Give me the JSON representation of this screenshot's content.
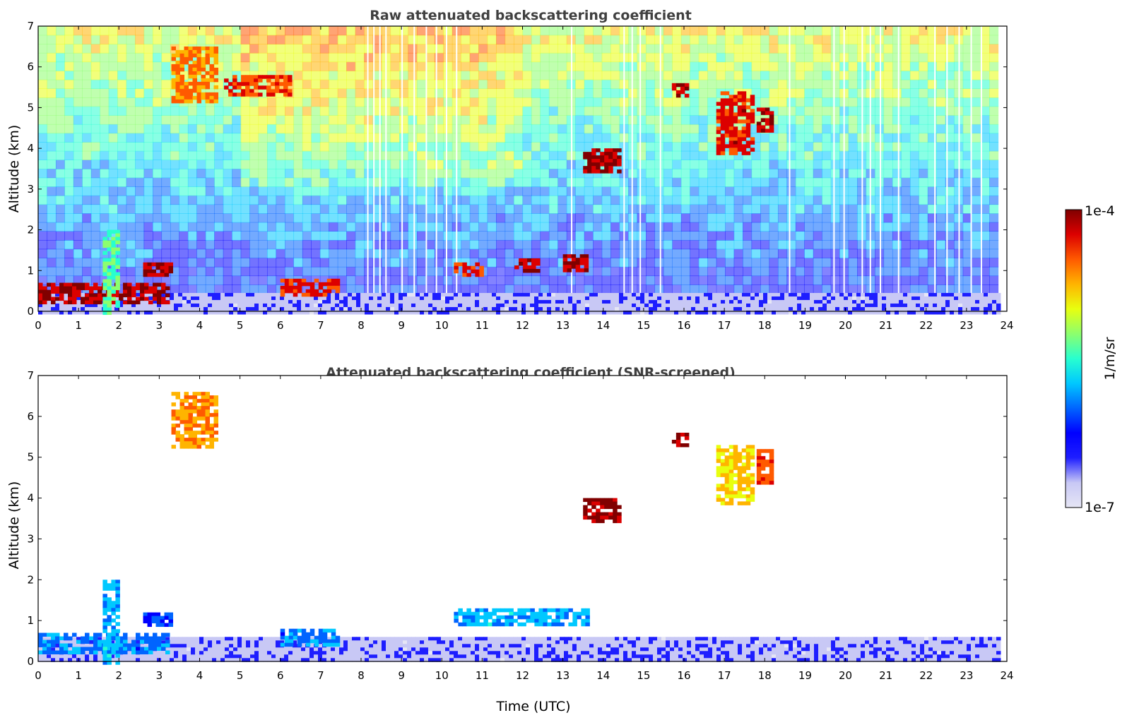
{
  "chart_data": [
    {
      "type": "heatmap",
      "title": "Raw attenuated backscattering coefficient",
      "xlabel": "",
      "ylabel": "Altitude (km)",
      "xlim": [
        0,
        24
      ],
      "ylim": [
        0,
        7
      ],
      "x_ticks": [
        "0",
        "1",
        "2",
        "3",
        "4",
        "5",
        "6",
        "7",
        "8",
        "9",
        "10",
        "11",
        "12",
        "13",
        "14",
        "15",
        "16",
        "17",
        "18",
        "19",
        "20",
        "21",
        "22",
        "23",
        "24"
      ],
      "y_ticks": [
        "0",
        "1",
        "2",
        "3",
        "4",
        "5",
        "6",
        "7"
      ],
      "features": [
        {
          "kind": "boundary_layer",
          "x": [
            0,
            23.8
          ],
          "y": [
            0,
            0.45
          ],
          "level": 0.1
        },
        {
          "kind": "aerosol_layer",
          "x": [
            0,
            3.2
          ],
          "y": [
            0.2,
            0.7
          ],
          "level": 0.95
        },
        {
          "kind": "plume",
          "x": [
            1.6,
            2.0
          ],
          "y": [
            0,
            2.0
          ],
          "level": 0.55
        },
        {
          "kind": "aerosol_layer",
          "x": [
            2.6,
            3.3
          ],
          "y": [
            0.9,
            1.2
          ],
          "level": 0.95
        },
        {
          "kind": "aerosol_layer",
          "x": [
            6.0,
            7.4
          ],
          "y": [
            0.4,
            0.8
          ],
          "level": 0.9
        },
        {
          "kind": "aerosol_layer",
          "x": [
            10.3,
            11.0
          ],
          "y": [
            0.9,
            1.2
          ],
          "level": 0.9
        },
        {
          "kind": "aerosol_layer",
          "x": [
            11.8,
            12.4
          ],
          "y": [
            1.0,
            1.3
          ],
          "level": 0.95
        },
        {
          "kind": "aerosol_layer",
          "x": [
            13.0,
            13.6
          ],
          "y": [
            1.0,
            1.4
          ],
          "level": 0.95
        },
        {
          "kind": "cirrus",
          "x": [
            3.3,
            4.4
          ],
          "y": [
            5.2,
            6.5
          ],
          "level": 0.8
        },
        {
          "kind": "cirrus",
          "x": [
            4.5,
            6.2
          ],
          "y": [
            5.3,
            5.8
          ],
          "level": 0.88
        },
        {
          "kind": "cirrus",
          "x": [
            13.5,
            14.4
          ],
          "y": [
            3.4,
            4.0
          ],
          "level": 0.97
        },
        {
          "kind": "cirrus",
          "x": [
            15.7,
            16.1
          ],
          "y": [
            5.3,
            5.6
          ],
          "level": 0.97
        },
        {
          "kind": "cirrus",
          "x": [
            16.8,
            17.7
          ],
          "y": [
            3.9,
            5.4
          ],
          "level": 0.9
        },
        {
          "kind": "cirrus",
          "x": [
            17.8,
            18.2
          ],
          "y": [
            4.4,
            5.0
          ],
          "level": 0.95
        }
      ]
    },
    {
      "type": "heatmap",
      "title": "Attenuated backscattering coefficient (SNR-screened)",
      "xlabel": "Time (UTC)",
      "ylabel": "Altitude (km)",
      "xlim": [
        0,
        24
      ],
      "ylim": [
        0,
        7
      ],
      "x_ticks": [
        "0",
        "1",
        "2",
        "3",
        "4",
        "5",
        "6",
        "7",
        "8",
        "9",
        "10",
        "11",
        "12",
        "13",
        "14",
        "15",
        "16",
        "17",
        "18",
        "19",
        "20",
        "21",
        "22",
        "23",
        "24"
      ],
      "y_ticks": [
        "0",
        "1",
        "2",
        "3",
        "4",
        "5",
        "6",
        "7"
      ],
      "features": [
        {
          "kind": "boundary_layer",
          "x": [
            0,
            23.8
          ],
          "y": [
            0,
            0.6
          ],
          "level": 0.1
        },
        {
          "kind": "aerosol_layer",
          "x": [
            0,
            3.2
          ],
          "y": [
            0.2,
            0.7
          ],
          "level": 0.35
        },
        {
          "kind": "plume",
          "x": [
            1.6,
            2.0
          ],
          "y": [
            0,
            2.0
          ],
          "level": 0.4
        },
        {
          "kind": "aerosol_layer",
          "x": [
            2.6,
            3.3
          ],
          "y": [
            0.9,
            1.2
          ],
          "level": 0.3
        },
        {
          "kind": "aerosol_layer",
          "x": [
            6.0,
            7.4
          ],
          "y": [
            0.4,
            0.8
          ],
          "level": 0.35
        },
        {
          "kind": "aerosol_layer",
          "x": [
            10.3,
            13.6
          ],
          "y": [
            0.9,
            1.3
          ],
          "level": 0.4
        },
        {
          "kind": "cirrus",
          "x": [
            3.3,
            4.4
          ],
          "y": [
            5.3,
            6.6
          ],
          "level": 0.78
        },
        {
          "kind": "cirrus",
          "x": [
            13.5,
            14.4
          ],
          "y": [
            3.4,
            4.0
          ],
          "level": 0.97
        },
        {
          "kind": "cirrus",
          "x": [
            15.7,
            16.1
          ],
          "y": [
            5.3,
            5.6
          ],
          "level": 0.97
        },
        {
          "kind": "cirrus",
          "x": [
            16.8,
            17.7
          ],
          "y": [
            3.9,
            5.3
          ],
          "level": 0.72
        },
        {
          "kind": "cirrus",
          "x": [
            17.8,
            18.2
          ],
          "y": [
            4.4,
            5.2
          ],
          "level": 0.85
        }
      ]
    }
  ],
  "colorbar": {
    "label": "1/m/sr",
    "max_label": "1e-4",
    "min_label": "1e-7",
    "colormap": "jet",
    "scale": "log",
    "range": [
      1e-07,
      0.0001
    ],
    "colors": [
      "#e6e6f5",
      "#c8c8f5",
      "#1e1eff",
      "#0000ff",
      "#0064ff",
      "#00c8ff",
      "#28ffcf",
      "#8cff6e",
      "#e8ff0f",
      "#ffb400",
      "#ff5a00",
      "#dc0000",
      "#800000"
    ]
  }
}
